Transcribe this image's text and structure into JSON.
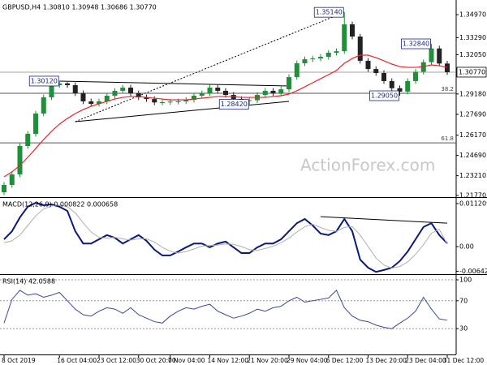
{
  "chart_data": [
    {
      "type": "candlestick",
      "title": "GBPUSD,H4 1.30810 1.30948 1.30686 1.30770",
      "watermark": "ActionForex.com",
      "categories": [
        "8 Oct 2019",
        null,
        null,
        null,
        null,
        null,
        null,
        "16 Oct 04:00",
        null,
        null,
        null,
        null,
        "23 Oct 12:00",
        null,
        null,
        null,
        null,
        "30 Oct 20:00",
        null,
        null,
        null,
        "7 Nov 04:00",
        null,
        null,
        null,
        null,
        "14 Nov 12:00",
        null,
        null,
        null,
        null,
        "21 Nov 20:00",
        null,
        null,
        null,
        null,
        "29 Nov 04:00",
        null,
        null,
        null,
        null,
        "6 Dec 12:00",
        null,
        null,
        null,
        null,
        "13 Dec 20:00",
        null,
        null,
        null,
        null,
        "23 Dec 04:00",
        null,
        null,
        null,
        null,
        "31 Dec 12:00"
      ],
      "open": [
        1.22,
        1.2254,
        1.2331,
        1.2538,
        1.2627,
        1.2775,
        1.2893,
        1.2982,
        1.2995,
        1.2982,
        1.2923,
        1.2864,
        1.2846,
        1.2864,
        1.2905,
        1.2941,
        1.2964,
        1.2923,
        1.2893,
        1.2881,
        1.2856,
        1.2858,
        1.2862,
        1.2864,
        1.2875,
        1.2905,
        1.2923,
        1.2964,
        1.2941,
        1.2911,
        1.2881,
        1.2868,
        1.2872,
        1.2911,
        1.2941,
        1.2923,
        1.2952,
        1.3041,
        1.3142,
        1.3171,
        1.3177,
        1.3189,
        1.3219,
        1.323,
        1.3426,
        1.3337,
        1.316,
        1.31,
        1.3071,
        1.3012,
        1.296,
        1.2935,
        1.3012,
        1.308,
        1.315,
        1.325,
        1.314
      ],
      "high": [
        1.2274,
        1.2351,
        1.2558,
        1.2647,
        1.2795,
        1.2913,
        1.3002,
        1.3012,
        1.3005,
        1.3002,
        1.2943,
        1.2884,
        1.2884,
        1.2925,
        1.2961,
        1.2984,
        1.2984,
        1.2943,
        1.2913,
        1.2901,
        1.2878,
        1.2882,
        1.2884,
        1.2895,
        1.2925,
        1.2943,
        1.2984,
        1.2984,
        1.2961,
        1.2931,
        1.2901,
        1.2892,
        1.2931,
        1.2961,
        1.2961,
        1.2972,
        1.3061,
        1.3162,
        1.3191,
        1.3197,
        1.3209,
        1.3239,
        1.325,
        1.3514,
        1.3446,
        1.3357,
        1.318,
        1.312,
        1.3091,
        1.3032,
        1.298,
        1.3032,
        1.31,
        1.317,
        1.3284,
        1.327,
        1.316
      ],
      "low": [
        1.218,
        1.2234,
        1.2311,
        1.2518,
        1.2607,
        1.2755,
        1.2873,
        1.2962,
        1.2962,
        1.2903,
        1.2844,
        1.2826,
        1.2826,
        1.2844,
        1.2885,
        1.2921,
        1.2903,
        1.2873,
        1.2861,
        1.2836,
        1.2836,
        1.2838,
        1.2842,
        1.2844,
        1.2855,
        1.2885,
        1.2903,
        1.2921,
        1.2891,
        1.2861,
        1.2848,
        1.2842,
        1.2852,
        1.2891,
        1.2903,
        1.2903,
        1.2932,
        1.3021,
        1.3122,
        1.3151,
        1.3157,
        1.3169,
        1.3199,
        1.321,
        1.3317,
        1.314,
        1.308,
        1.3051,
        1.2992,
        1.294,
        1.2905,
        1.2915,
        1.2992,
        1.306,
        1.313,
        1.312,
        1.3057
      ],
      "close": [
        1.2254,
        1.2331,
        1.2538,
        1.2627,
        1.2775,
        1.2893,
        1.2982,
        1.2995,
        1.2982,
        1.2923,
        1.2864,
        1.2846,
        1.2864,
        1.2905,
        1.2941,
        1.2964,
        1.2923,
        1.2893,
        1.2881,
        1.2856,
        1.2858,
        1.2862,
        1.2864,
        1.2875,
        1.2905,
        1.2923,
        1.2964,
        1.2941,
        1.2911,
        1.2881,
        1.2868,
        1.2872,
        1.2911,
        1.2941,
        1.2923,
        1.2952,
        1.3041,
        1.3142,
        1.3171,
        1.3177,
        1.3189,
        1.3219,
        1.323,
        1.3426,
        1.3337,
        1.316,
        1.31,
        1.3071,
        1.3012,
        1.296,
        1.2935,
        1.3012,
        1.308,
        1.315,
        1.325,
        1.314,
        1.3077
      ],
      "up_color": "#1f8f3a",
      "down_color": "#222222",
      "series": [
        {
          "color": "#e8262d",
          "values": [
            1.2313,
            1.2349,
            1.2396,
            1.2455,
            1.252,
            1.2585,
            1.2645,
            1.2698,
            1.2739,
            1.2775,
            1.2804,
            1.2828,
            1.2846,
            1.2864,
            1.2881,
            1.2893,
            1.2899,
            1.2899,
            1.2893,
            1.2887,
            1.2881,
            1.2875,
            1.2875,
            1.2875,
            1.2881,
            1.2887,
            1.2893,
            1.2899,
            1.2899,
            1.2899,
            1.2893,
            1.2893,
            1.2893,
            1.2893,
            1.2899,
            1.2905,
            1.2917,
            1.2941,
            1.297,
            1.3,
            1.3029,
            1.3059,
            1.3089,
            1.3142,
            1.3177,
            1.3201,
            1.3201,
            1.3183,
            1.316,
            1.3136,
            1.3118,
            1.3112,
            1.3112,
            1.3118,
            1.313,
            1.3124,
            1.3112
          ]
        }
      ],
      "ylim": [
        1.2165,
        1.3592
      ],
      "yticks": [
        {
          "value": 1.3497,
          "label": "1.34970"
        },
        {
          "value": 1.3329,
          "label": "1.33290"
        },
        {
          "value": 1.3205,
          "label": "1.32050"
        },
        {
          "value": 1.2918,
          "label": "1.29180"
        },
        {
          "value": 1.2769,
          "label": "1.27690"
        },
        {
          "value": 1.2617,
          "label": "1.26170"
        },
        {
          "value": 1.2469,
          "label": "1.24690"
        },
        {
          "value": 1.2321,
          "label": "1.23210"
        },
        {
          "value": 1.2177,
          "label": "1.21770"
        }
      ],
      "current_price": {
        "value": 1.3077,
        "label": "1.30770"
      },
      "annotations": [
        {
          "index": 7,
          "value": 1.3012,
          "label": "1.30120"
        },
        {
          "index": 43,
          "value": 1.3514,
          "label": "1.35140"
        },
        {
          "index": 31,
          "value": 1.2842,
          "label": "1.28420"
        },
        {
          "index": 50,
          "value": 1.2905,
          "label": "1.29050"
        },
        {
          "index": 54,
          "value": 1.3284,
          "label": "1.32840"
        }
      ],
      "fib_levels": [
        {
          "level": 38.2,
          "price": 1.2923
        },
        {
          "level": 61.8,
          "price": 1.2561
        }
      ],
      "trendlines": [
        {
          "style": "dotted",
          "from": [
            9,
            1.2716
          ],
          "to": [
            43,
            1.3514
          ]
        },
        {
          "style": "solid",
          "from": [
            7,
            1.3012
          ],
          "to": [
            36,
            1.2976
          ]
        },
        {
          "style": "solid",
          "from": [
            9,
            1.2716
          ],
          "to": [
            36,
            1.2864
          ]
        }
      ]
    },
    {
      "type": "line",
      "title": "MACD(12,26,9) 0.000822 0.000658",
      "series": [
        {
          "color": "#0a1a7a",
          "width": 2,
          "values": [
            0.0019,
            0.004,
            0.0076,
            0.0104,
            0.0114,
            0.0108,
            0.011,
            0.0104,
            0.0093,
            0.004,
            0.0008,
            0.0008,
            0.0019,
            0.003,
            0.0023,
            0.0008,
            0.0019,
            0.003,
            0.0015,
            -0.0008,
            -0.0023,
            -0.0023,
            -0.0013,
            -0.0002,
            0.0008,
            0.0008,
            -0.0002,
            0.0008,
            0.0013,
            -0.0002,
            -0.0017,
            -0.0017,
            -0.0002,
            0.0008,
            0.0008,
            0.0019,
            0.004,
            0.0061,
            0.0072,
            0.0055,
            0.0034,
            0.003,
            0.004,
            0.0072,
            0.004,
            -0.0034,
            -0.0055,
            -0.0066,
            -0.0061,
            -0.0055,
            -0.0038,
            -0.0013,
            0.0019,
            0.0051,
            0.0061,
            0.003,
            0.000822
          ]
        },
        {
          "color": "#b0b0b0",
          "width": 1,
          "values": [
            0.001,
            0.0015,
            0.003,
            0.0055,
            0.008,
            0.0098,
            0.0106,
            0.0108,
            0.0104,
            0.0088,
            0.0062,
            0.0038,
            0.0024,
            0.0022,
            0.0024,
            0.002,
            0.0017,
            0.002,
            0.002,
            0.0012,
            -0.0002,
            -0.0012,
            -0.0017,
            -0.0013,
            -0.0006,
            0.0001,
            0.0003,
            0.0004,
            0.0007,
            0.0006,
            0.0,
            -0.0008,
            -0.001,
            -0.0005,
            0.0001,
            0.001,
            0.0022,
            0.0038,
            0.0052,
            0.0058,
            0.005,
            0.0042,
            0.004,
            0.005,
            0.0052,
            0.003,
            0.0,
            -0.003,
            -0.0048,
            -0.0056,
            -0.0052,
            -0.004,
            -0.002,
            0.0005,
            0.0035,
            0.0045,
            0.000658
          ]
        }
      ],
      "ylim": [
        -0.00719,
        0.01248
      ],
      "yticks": [
        0.011209,
        {
          "value": 0,
          "label": "0.00"
        },
        -0.00642
      ],
      "grid": false,
      "trendlines": [
        {
          "style": "solid",
          "from": [
            40,
            0.0078
          ],
          "to": [
            56,
            0.0061
          ]
        }
      ]
    },
    {
      "type": "line",
      "title": "RSI(14) 42.0588",
      "series": [
        {
          "color": "#3b4a9a",
          "width": 1,
          "values": [
            38,
            72,
            85,
            78,
            80,
            75,
            78,
            82,
            70,
            58,
            50,
            48,
            55,
            60,
            58,
            52,
            60,
            50,
            45,
            40,
            38,
            48,
            55,
            60,
            58,
            62,
            65,
            55,
            50,
            45,
            48,
            52,
            58,
            55,
            60,
            62,
            70,
            75,
            68,
            70,
            72,
            74,
            85,
            60,
            48,
            42,
            40,
            35,
            32,
            30,
            38,
            45,
            55,
            75,
            58,
            44,
            42.0588
          ]
        }
      ],
      "ylim": [
        -7,
        105.8
      ],
      "yticks": [
        100,
        70,
        30
      ],
      "grid": true
    }
  ]
}
